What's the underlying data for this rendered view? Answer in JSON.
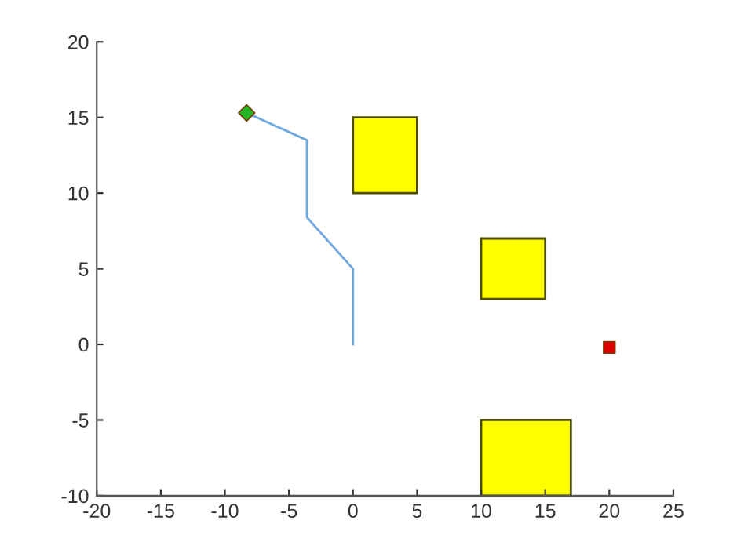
{
  "chart_data": {
    "type": "line",
    "xlim": [
      -20,
      25
    ],
    "ylim": [
      -10,
      20
    ],
    "xticks": [
      -20,
      -15,
      -10,
      -5,
      0,
      5,
      10,
      15,
      20,
      25
    ],
    "yticks": [
      -10,
      -5,
      0,
      5,
      10,
      15,
      20
    ],
    "grid": false,
    "legend": false,
    "series": [
      {
        "type": "area",
        "color": "#ffff00",
        "x": [
          0,
          5,
          5,
          0
        ],
        "values": [
          10,
          10,
          15,
          15
        ]
      },
      {
        "type": "area",
        "color": "#ffff00",
        "x": [
          10,
          15,
          15,
          10
        ],
        "values": [
          3,
          3,
          7,
          7
        ]
      },
      {
        "type": "area",
        "color": "#ffff00",
        "x": [
          10,
          17,
          17,
          10
        ],
        "values": [
          -10,
          -10,
          -5,
          -5
        ]
      },
      {
        "color": "#6fa8dc",
        "x": [
          0,
          0,
          -3.6,
          -3.6,
          -8.3
        ],
        "values": [
          0,
          5,
          8.4,
          13.5,
          15.3
        ],
        "marker": "none"
      },
      {
        "type": "scatter",
        "color": "#22b422",
        "x": [
          -8.3
        ],
        "values": [
          15.3
        ],
        "marker": "diamond"
      },
      {
        "type": "scatter",
        "color": "#dd0000",
        "x": [
          20
        ],
        "values": [
          -0.2
        ],
        "marker": "square"
      }
    ]
  }
}
